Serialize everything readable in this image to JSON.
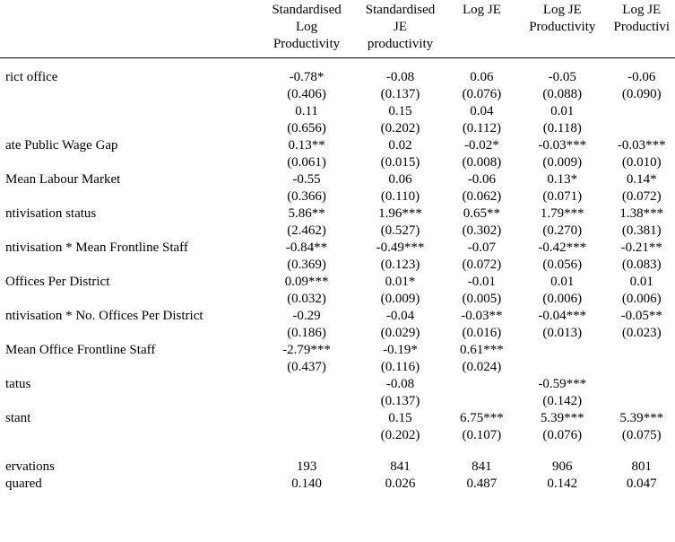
{
  "columns": [
    {
      "line1": "",
      "line2": "Standardised",
      "line3": "Log",
      "line4": "Productivity"
    },
    {
      "line1": "",
      "line2": "Standardised",
      "line3": "JE",
      "line4": "productivity"
    },
    {
      "line1": "",
      "line2": "Log JE",
      "line3": "",
      "line4": ""
    },
    {
      "line1": "",
      "line2": "Log JE",
      "line3": "Productivity",
      "line4": ""
    },
    {
      "line1": "",
      "line2": "Log JE",
      "line3": "Productivi",
      "line4": ""
    }
  ],
  "rows": [
    {
      "label": "rict office",
      "coef": [
        "-0.78*",
        "-0.08",
        "0.06",
        "-0.05",
        "-0.06"
      ],
      "se": [
        "(0.406)",
        "(0.137)",
        "(0.076)",
        "(0.088)",
        "(0.090)"
      ]
    },
    {
      "label": "",
      "coef": [
        "0.11",
        "0.15",
        "0.04",
        "0.01",
        ""
      ],
      "se": [
        "(0.656)",
        "(0.202)",
        "(0.112)",
        "(0.118)",
        ""
      ]
    },
    {
      "label": "ate Public Wage Gap",
      "coef": [
        "0.13**",
        "0.02",
        "-0.02*",
        "-0.03***",
        "-0.03***"
      ],
      "se": [
        "(0.061)",
        "(0.015)",
        "(0.008)",
        "(0.009)",
        "(0.010)"
      ]
    },
    {
      "label": "Mean Labour Market",
      "coef": [
        "-0.55",
        "0.06",
        "-0.06",
        "0.13*",
        "0.14*"
      ],
      "se": [
        "(0.366)",
        "(0.110)",
        "(0.062)",
        "(0.071)",
        "(0.072)"
      ]
    },
    {
      "label": "ntivisation status",
      "coef": [
        "5.86**",
        "1.96***",
        "0.65**",
        "1.79***",
        "1.38***"
      ],
      "se": [
        "(2.462)",
        "(0.527)",
        "(0.302)",
        "(0.270)",
        "(0.381)"
      ]
    },
    {
      "label": "ntivisation * Mean Frontline Staff",
      "coef": [
        "-0.84**",
        "-0.49***",
        "-0.07",
        "-0.42***",
        "-0.21**"
      ],
      "se": [
        "(0.369)",
        "(0.123)",
        "(0.072)",
        "(0.056)",
        "(0.083)"
      ]
    },
    {
      "label": "Offices Per District",
      "coef": [
        "0.09***",
        "0.01*",
        "-0.01",
        "0.01",
        "0.01"
      ],
      "se": [
        "(0.032)",
        "(0.009)",
        "(0.005)",
        "(0.006)",
        "(0.006)"
      ]
    },
    {
      "label": "ntivisation * No. Offices Per District",
      "coef": [
        "-0.29",
        "-0.04",
        "-0.03**",
        "-0.04***",
        "-0.05**"
      ],
      "se": [
        "(0.186)",
        "(0.029)",
        "(0.016)",
        "(0.013)",
        "(0.023)"
      ]
    },
    {
      "label": "Mean Office Frontline Staff",
      "coef": [
        "-2.79***",
        "-0.19*",
        "0.61***",
        "",
        ""
      ],
      "se": [
        "(0.437)",
        "(0.116)",
        "(0.024)",
        "",
        ""
      ]
    },
    {
      "label": "tatus",
      "coef": [
        "",
        "-0.08",
        "",
        "-0.59***",
        ""
      ],
      "se": [
        "",
        "(0.137)",
        "",
        "(0.142)",
        ""
      ]
    },
    {
      "label": "stant",
      "coef": [
        "",
        "0.15",
        "6.75***",
        "5.39***",
        "5.39***"
      ],
      "se": [
        "",
        "(0.202)",
        "(0.107)",
        "(0.076)",
        "(0.075)"
      ]
    }
  ],
  "footer": [
    {
      "label": "ervations",
      "vals": [
        "193",
        "841",
        "841",
        "906",
        "801"
      ]
    },
    {
      "label": "quared",
      "vals": [
        "0.140",
        "0.026",
        "0.487",
        "0.142",
        "0.047"
      ]
    }
  ],
  "layout": {
    "col_widths": [
      "292px",
      "105px",
      "105px",
      "78px",
      "103px",
      "70px"
    ]
  }
}
